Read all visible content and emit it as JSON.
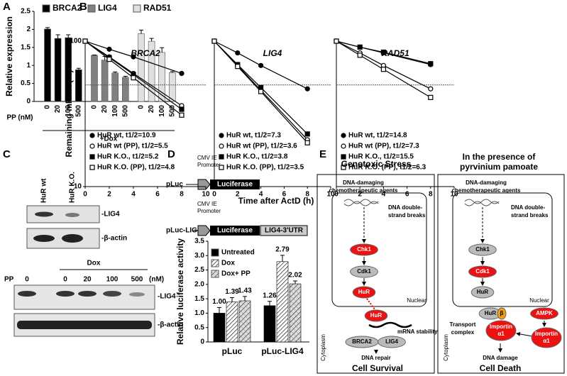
{
  "panel_labels": [
    "A",
    "B",
    "C",
    "D",
    "E"
  ],
  "chart_data": [
    {
      "type": "bar",
      "y_label": "Relative expression",
      "x_label": "PP (nM)",
      "x_note": "+Dox",
      "categories": [
        "0",
        "20",
        "100",
        "500"
      ],
      "series": [
        {
          "name": "BRCA2",
          "color": "#000000",
          "values": [
            2.01,
            1.75,
            1.77,
            0.88
          ],
          "errors": [
            0.04,
            0.1,
            0.08,
            0.04
          ]
        },
        {
          "name": "LIG4",
          "color": "#808080",
          "values": [
            1.28,
            1.15,
            0.79,
            0.67
          ],
          "errors": [
            0.01,
            0.1,
            0.03,
            0.03
          ]
        },
        {
          "name": "RAD51",
          "color": "#e0e0e0",
          "values": [
            1.88,
            1.67,
            1.36,
            0.8
          ],
          "errors": [
            0.1,
            0.08,
            0.13,
            0.03
          ]
        }
      ],
      "ylim": [
        0,
        2.5
      ],
      "yticks": [
        0,
        0.5,
        1,
        1.5,
        2,
        2.5
      ]
    },
    {
      "type": "line",
      "title": "BRCA2",
      "y_label": "Remaining mRNA (%)",
      "log_y": true,
      "reference_line": 50,
      "x": [
        0,
        2,
        4,
        8
      ],
      "xlim": [
        0,
        10
      ],
      "xticks": [
        0,
        2,
        4,
        6,
        8,
        10
      ],
      "ylim": [
        10,
        100
      ],
      "yticks": [
        10,
        100
      ],
      "series": [
        {
          "name": "HuR wt, t1/2=10.9",
          "marker": "filled-circle",
          "color": "#000000",
          "values": [
            100,
            88,
            78,
            60
          ]
        },
        {
          "name": "HuR wt (PP), t1/2=5.5",
          "marker": "open-circle",
          "color": "#000000",
          "values": [
            100,
            78,
            60,
            36
          ]
        },
        {
          "name": "HuR K.O., t1/2=5.2",
          "marker": "filled-square",
          "color": "#000000",
          "values": [
            100,
            77,
            59,
            34
          ]
        },
        {
          "name": "HuR K.O. (PP), t1/2=4.8",
          "marker": "open-square",
          "color": "#000000",
          "values": [
            100,
            75,
            56,
            31
          ]
        }
      ]
    },
    {
      "type": "line",
      "title": "LIG4",
      "x_label": "Time after ActD (h)",
      "log_y": true,
      "reference_line": 50,
      "x": [
        0,
        2,
        4,
        8
      ],
      "xlim": [
        0,
        10
      ],
      "xticks": [
        0,
        2,
        4,
        6,
        8,
        10
      ],
      "ylim": [
        10,
        100
      ],
      "series": [
        {
          "name": "HuR wt, t1/2=7.3",
          "marker": "filled-circle",
          "color": "#000000",
          "values": [
            100,
            83,
            68,
            47
          ]
        },
        {
          "name": "HuR wt (PP), t1/2=3.6",
          "marker": "open-circle",
          "color": "#000000",
          "values": [
            100,
            68,
            46,
            21
          ]
        },
        {
          "name": "HuR K.O., t1/2=3.8",
          "marker": "filled-square",
          "color": "#000000",
          "values": [
            100,
            69,
            48,
            23
          ]
        },
        {
          "name": "HuR K.O. (PP), t1/2=3.5",
          "marker": "open-square",
          "color": "#000000",
          "values": [
            100,
            67,
            45,
            20
          ]
        }
      ]
    },
    {
      "type": "line",
      "title": "RAD51",
      "log_y": true,
      "reference_line": 50,
      "x": [
        0,
        2,
        4,
        8
      ],
      "xlim": [
        0,
        10
      ],
      "xticks": [
        0,
        2,
        4,
        6,
        8,
        10
      ],
      "ylim": [
        10,
        100
      ],
      "series": [
        {
          "name": "HuR wt, t1/2=14.8",
          "marker": "filled-circle",
          "color": "#000000",
          "values": [
            100,
            91,
            83,
            69
          ]
        },
        {
          "name": "HuR wt (PP), t1/2=7.3",
          "marker": "open-circle",
          "color": "#000000",
          "values": [
            100,
            83,
            68,
            47
          ]
        },
        {
          "name": "HuR K.O., t1/2=15.5",
          "marker": "filled-square",
          "color": "#000000",
          "values": [
            100,
            91,
            84,
            70
          ]
        },
        {
          "name": "HuR K.O. (PP), t1/2=6.3",
          "marker": "open-square",
          "color": "#000000",
          "values": [
            100,
            80,
            64,
            41
          ]
        }
      ]
    },
    {
      "type": "bar",
      "y_label": "Relative luciferase activity",
      "categories": [
        "pLuc",
        "pLuc-LIG4"
      ],
      "series": [
        {
          "name": "Untreated",
          "pattern": "solid",
          "color": "#000000",
          "values": [
            1.0,
            1.26
          ],
          "value_labels": [
            "1.00",
            "1.26"
          ],
          "errors": [
            0.2,
            0.15
          ]
        },
        {
          "name": "Dox",
          "pattern": "hatch",
          "color": "#000000",
          "values": [
            1.39,
            2.79
          ],
          "value_labels": [
            "1.39",
            "2.79"
          ],
          "errors": [
            0.15,
            0.22
          ]
        },
        {
          "name": "Dox+ PP",
          "pattern": "crosshatch",
          "color": "#000000",
          "values": [
            1.43,
            2.02
          ],
          "value_labels": [
            "1.43",
            "2.02"
          ],
          "errors": [
            0.15,
            0.1
          ]
        }
      ],
      "ylim": [
        0,
        3.5
      ],
      "yticks": [
        0,
        0.5,
        {
          "value": 1,
          "label": "1.0"
        },
        1.5,
        {
          "value": 2,
          "label": "2.0"
        },
        2.5,
        {
          "value": 3,
          "label": "3.0"
        },
        3.5
      ]
    }
  ],
  "blot": {
    "top_lanes": [
      "HuR wt",
      "HuR K.O."
    ],
    "top_bands": [
      "-LIG4",
      "-β-actin"
    ],
    "treatment": "Dox",
    "lane_header": "PP",
    "lanes": [
      "0",
      "0",
      "20",
      "100",
      "500"
    ],
    "unit": "(nM)",
    "bottom_bands": [
      "-LIG4",
      "-β-actin"
    ]
  },
  "construct": [
    {
      "name": "pLuc",
      "promoter": [
        "CMV IE",
        "Promoter"
      ],
      "gene": "Luciferase"
    },
    {
      "name": "pLuc-LIG4",
      "promoter": [
        "CMV IE",
        "Promoter"
      ],
      "gene": "Luciferase",
      "utr": "LIG4-3'UTR"
    }
  ],
  "model": {
    "left": {
      "title": [
        "Genotoxic Stress"
      ],
      "agents": [
        "DNA-damaging",
        "chemotherapeutic agents"
      ],
      "breaks": [
        "DNA double-",
        "strand breaks"
      ],
      "nodes": [
        "Chk1",
        "Cdk1",
        "HuR",
        "HuR",
        "BRCA2",
        "LIG4"
      ],
      "nucleus": "Nuclear",
      "cytoplasm": "Cytoplasm",
      "notes": [
        "mRNA stability",
        "DNA repair"
      ],
      "outcome": "Cell Survival"
    },
    "right": {
      "title": [
        "In the presence of",
        "pyrvinium pamoate"
      ],
      "agents": [
        "DNA-damaging",
        "chemotherapeutic agents"
      ],
      "breaks": [
        "DNA double-",
        "strand breaks"
      ],
      "nodes": [
        "Chk1",
        "Cdk1",
        "HuR",
        "HuR",
        "β",
        "AMPK"
      ],
      "importins": [
        [
          "Importin",
          "α1"
        ],
        [
          "Importin",
          "α1"
        ]
      ],
      "transport": [
        "Transport",
        "complex"
      ],
      "nucleus": "Nuclear",
      "cytoplasm": "Cytoplasm",
      "notes": [
        "DNA damage"
      ],
      "outcome": "Cell Death"
    }
  }
}
